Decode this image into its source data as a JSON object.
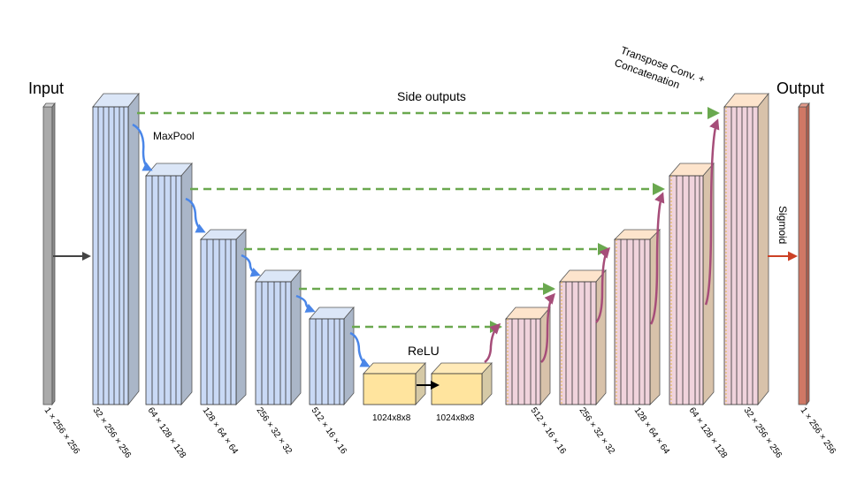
{
  "labels": {
    "input": "Input",
    "output": "Output",
    "side_outputs": "Side outputs",
    "maxpool": "MaxPool",
    "relu": "ReLU",
    "sigmoid": "Sigmoid",
    "transpose_line1": "Transpose Conv. +",
    "transpose_line2": "Concatenation"
  },
  "dims": {
    "input": "1 × 256 × 256",
    "enc1": "32 × 256 × 256",
    "enc2": "64 × 128 × 128",
    "enc3": "128 × 64 × 64",
    "enc4": "256 × 32 × 32",
    "enc5": "512 × 16 × 16",
    "bott1": "1024x8x8",
    "bott2": "1024x8x8",
    "dec1": "512 × 16 × 16",
    "dec2": "256 × 32 × 32",
    "dec3": "128 × 64 × 64",
    "dec4": "64 × 128 × 128",
    "dec5": "32 × 256 × 256",
    "output": "1 × 256 × 256"
  },
  "colors": {
    "encoder_front": "#c9d9f5",
    "encoder_side": "#aab6c8",
    "encoder_top": "#dbe6f7",
    "decoder_front": "#f0d3dc",
    "decoder_side": "#d8c2aa",
    "decoder_top": "#fde4cc",
    "bottleneck_front": "#ffe49e",
    "bottleneck_side": "#d5c9a6",
    "input_bar": "#aaaaaa",
    "output_bar": "#d07865",
    "maxpool_arrow": "#4a86e8",
    "skip_arrow": "#6aa84f",
    "upconv_arrow": "#a64d79",
    "sigmoid_arrow": "#cc4125",
    "dark_arrow": "#444444"
  }
}
